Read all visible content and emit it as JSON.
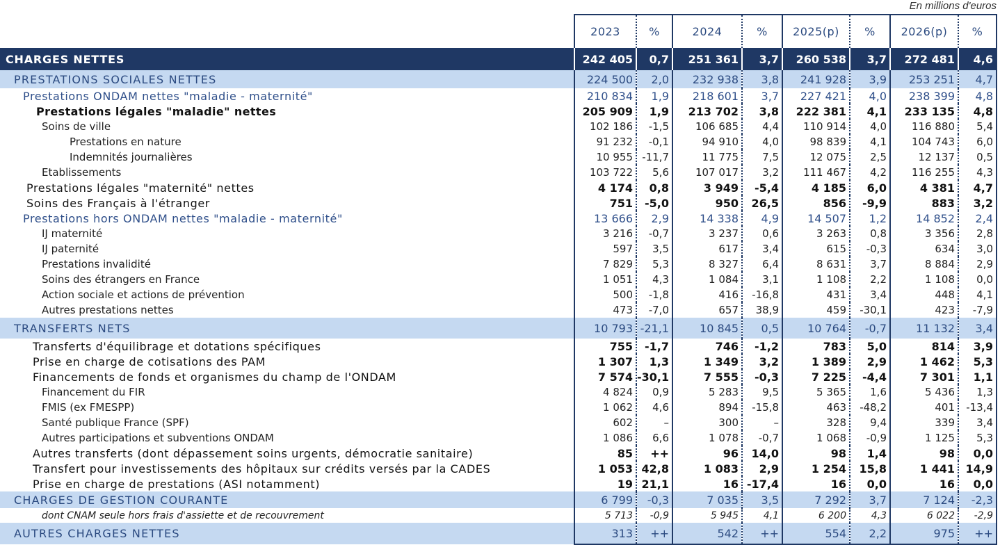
{
  "note": "En millions d'euros",
  "table": {
    "header": [
      "2023",
      "%",
      "2024",
      "%",
      "2025(p)",
      "%",
      "2026(p)",
      "%"
    ],
    "rows": [
      [
        "CHARGES NETTES",
        "242 405",
        "0,7",
        "251 361",
        "3,7",
        "260 538",
        "3,7",
        "272 481",
        "4,6"
      ],
      [
        "PRESTATIONS SOCIALES NETTES",
        "224 500",
        "2,0",
        "232 938",
        "3,8",
        "241 928",
        "3,9",
        "253 251",
        "4,7"
      ],
      [
        "Prestations ONDAM nettes \"maladie - maternité\"",
        "210 834",
        "1,9",
        "218 601",
        "3,7",
        "227 421",
        "4,0",
        "238 399",
        "4,8"
      ],
      [
        "Prestations légales \"maladie\" nettes",
        "205 909",
        "1,9",
        "213 702",
        "3,8",
        "222 381",
        "4,1",
        "233 135",
        "4,8"
      ],
      [
        "Soins de ville",
        "102 186",
        "-1,5",
        "106 685",
        "4,4",
        "110 914",
        "4,0",
        "116 880",
        "5,4"
      ],
      [
        "Prestations en nature",
        "91 232",
        "-0,1",
        "94 910",
        "4,0",
        "98 839",
        "4,1",
        "104 743",
        "6,0"
      ],
      [
        "Indemnités journalières",
        "10 955",
        "-11,7",
        "11 775",
        "7,5",
        "12 075",
        "2,5",
        "12 137",
        "0,5"
      ],
      [
        "Etablissements",
        "103 722",
        "5,6",
        "107 017",
        "3,2",
        "111 467",
        "4,2",
        "116 255",
        "4,3"
      ],
      [
        "Prestations légales \"maternité\" nettes",
        "4 174",
        "0,8",
        "3 949",
        "-5,4",
        "4 185",
        "6,0",
        "4 381",
        "4,7"
      ],
      [
        "Soins des Français à l'étranger",
        "751",
        "-5,0",
        "950",
        "26,5",
        "856",
        "-9,9",
        "883",
        "3,2"
      ],
      [
        "Prestations hors ONDAM nettes \"maladie - maternité\"",
        "13 666",
        "2,9",
        "14 338",
        "4,9",
        "14 507",
        "1,2",
        "14 852",
        "2,4"
      ],
      [
        "IJ maternité",
        "3 216",
        "-0,7",
        "3 237",
        "0,6",
        "3 263",
        "0,8",
        "3 356",
        "2,8"
      ],
      [
        "IJ paternité",
        "597",
        "3,5",
        "617",
        "3,4",
        "615",
        "-0,3",
        "634",
        "3,0"
      ],
      [
        "Prestations invalidité",
        "7 829",
        "5,3",
        "8 327",
        "6,4",
        "8 631",
        "3,7",
        "8 884",
        "2,9"
      ],
      [
        "Soins des étrangers en France",
        "1 051",
        "4,3",
        "1 084",
        "3,1",
        "1 108",
        "2,2",
        "1 108",
        "0,0"
      ],
      [
        "Action sociale et actions de prévention",
        "500",
        "-1,8",
        "416",
        "-16,8",
        "431",
        "3,4",
        "448",
        "4,1"
      ],
      [
        "Autres prestations nettes",
        "473",
        "-7,0",
        "657",
        "38,9",
        "459",
        "-30,1",
        "423",
        "-7,9"
      ],
      [
        "TRANSFERTS NETS",
        "10 793",
        "-21,1",
        "10 845",
        "0,5",
        "10 764",
        "-0,7",
        "11 132",
        "3,4"
      ],
      [
        "Transferts d'équilibrage et dotations spécifiques",
        "755",
        "-1,7",
        "746",
        "-1,2",
        "783",
        "5,0",
        "814",
        "3,9"
      ],
      [
        "Prise en charge de cotisations des PAM",
        "1 307",
        "1,3",
        "1 349",
        "3,2",
        "1 389",
        "2,9",
        "1 462",
        "5,3"
      ],
      [
        "Financements de fonds et organismes du champ de l'ONDAM",
        "7 574",
        "-30,1",
        "7 555",
        "-0,3",
        "7 225",
        "-4,4",
        "7 301",
        "1,1"
      ],
      [
        "Financement du FIR",
        "4 824",
        "0,9",
        "5 283",
        "9,5",
        "5 365",
        "1,6",
        "5 436",
        "1,3"
      ],
      [
        "FMIS (ex FMESPP)",
        "1 062",
        "4,6",
        "894",
        "-15,8",
        "463",
        "-48,2",
        "401",
        "-13,4"
      ],
      [
        "Santé publique France (SPF)",
        "602",
        "–",
        "300",
        "–",
        "328",
        "9,4",
        "339",
        "3,4"
      ],
      [
        "Autres participations et subventions ONDAM",
        "1 086",
        "6,6",
        "1 078",
        "-0,7",
        "1 068",
        "-0,9",
        "1 125",
        "5,3"
      ],
      [
        "Autres transferts (dont dépassement soins urgents, démocratie sanitaire)",
        "85",
        "++",
        "96",
        "14,0",
        "98",
        "1,4",
        "98",
        "0,0"
      ],
      [
        "Transfert pour investissements des hôpitaux sur crédits versés par la CADES",
        "1 053",
        "42,8",
        "1 083",
        "2,9",
        "1 254",
        "15,8",
        "1 441",
        "14,9"
      ],
      [
        "Prise en charge de prestations (ASI notamment)",
        "19",
        "21,1",
        "16",
        "-17,4",
        "16",
        "0,0",
        "16",
        "0,0"
      ],
      [
        "CHARGES DE GESTION COURANTE",
        "6 799",
        "-0,3",
        "7 035",
        "3,5",
        "7 292",
        "3,7",
        "7 124",
        "-2,3"
      ],
      [
        "dont CNAM seule hors frais d'assiette et de recouvrement",
        "5 713",
        "-0,9",
        "5 945",
        "4,1",
        "6 200",
        "4,3",
        "6 022",
        "-2,9"
      ],
      [
        "AUTRES CHARGES NETTES",
        "313",
        "++",
        "542",
        "++",
        "554",
        "2,2",
        "975",
        "++"
      ]
    ]
  }
}
